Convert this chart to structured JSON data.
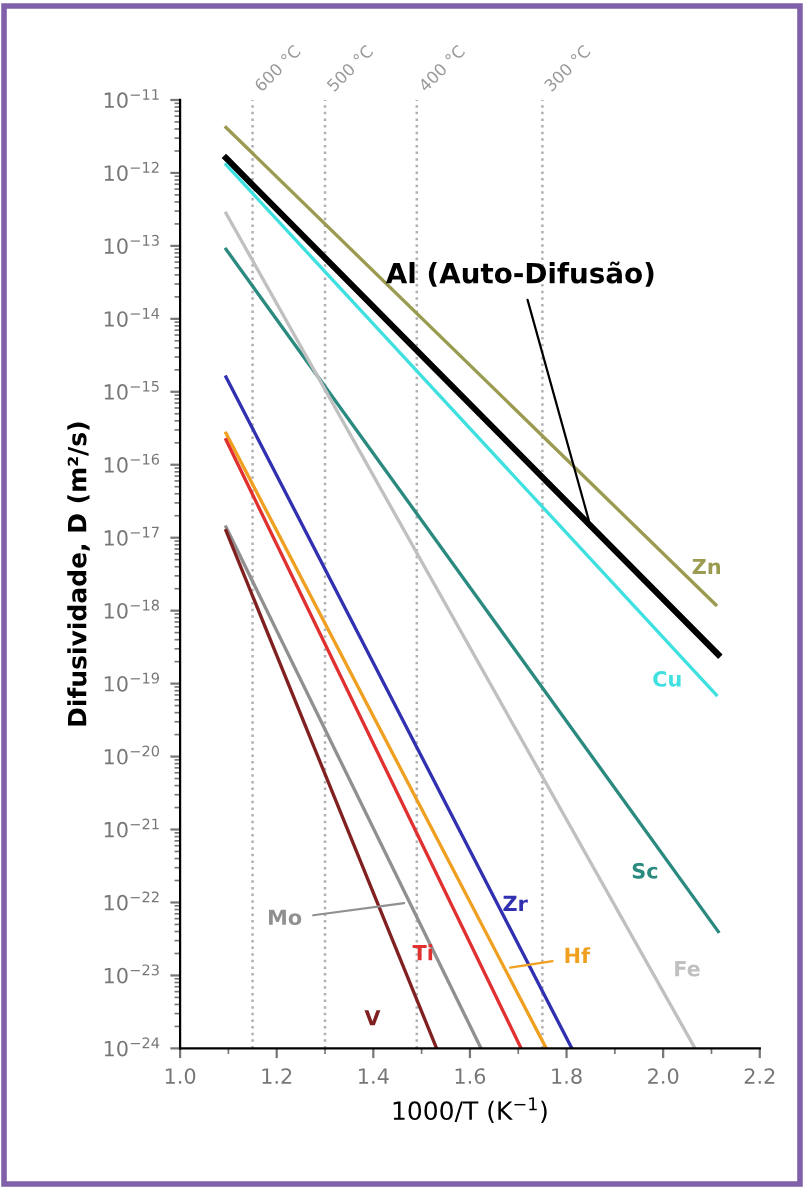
{
  "chart_data": {
    "type": "line",
    "xlabel": "1000/T (K$^{−1}$)",
    "ylabel": "Difusividade, D (m²/s)",
    "log": "y",
    "grid": false,
    "marker": "none",
    "line_style": "solid",
    "xlim": [
      1.0,
      2.2
    ],
    "xticks": [
      {
        "value": 1.0,
        "label": "1.0"
      },
      {
        "value": 1.2,
        "label": "1.2"
      },
      {
        "value": 1.4,
        "label": "1.4"
      },
      {
        "value": 1.6,
        "label": "1.6"
      },
      {
        "value": 1.8,
        "label": "1.8"
      },
      {
        "value": 2.0,
        "label": "2.0"
      },
      {
        "value": 2.2,
        "label": "2.2"
      }
    ],
    "ylim": [
      1e-24,
      1e-11
    ],
    "yticks": [
      {
        "value": 1e-11,
        "label": "10$^{−11}$"
      },
      {
        "value": 1e-12,
        "label": "10$^{−12}$"
      },
      {
        "value": 1e-13,
        "label": "10$^{−13}$"
      },
      {
        "value": 1e-14,
        "label": "10$^{−14}$"
      },
      {
        "value": 1e-15,
        "label": "10$^{−15}$"
      },
      {
        "value": 1e-16,
        "label": "10$^{−16}$"
      },
      {
        "value": 1e-17,
        "label": "10$^{−17}$"
      },
      {
        "value": 1e-18,
        "label": "10$^{−18}$"
      },
      {
        "value": 1e-19,
        "label": "10$^{−19}$"
      },
      {
        "value": 1e-20,
        "label": "10$^{−20}$"
      },
      {
        "value": 1e-21,
        "label": "10$^{−21}$"
      },
      {
        "value": 1e-22,
        "label": "10$^{−22}$"
      },
      {
        "value": 1e-23,
        "label": "10$^{−23}$"
      },
      {
        "value": 1e-24,
        "label": "10$^{−24}$"
      }
    ],
    "series": [
      {
        "name": "Zn",
        "color": "#9a9a50",
        "x": [
          1.095,
          2.109
        ],
        "values": [
          4.2e-12,
          1.2e-18
        ]
      },
      {
        "name": "Al (Auto-Difusão)",
        "color": "#000000",
        "x": [
          1.095,
          2.114
        ],
        "values": [
          1.6e-12,
          2.5e-19
        ]
      },
      {
        "name": "Cu",
        "color": "#40e0e0",
        "x": [
          1.095,
          2.11
        ],
        "values": [
          1.3e-12,
          7e-20
        ]
      },
      {
        "name": "Sc",
        "color": "#2a8a80",
        "x": [
          1.095,
          2.114
        ],
        "values": [
          9e-14,
          4e-23
        ]
      },
      {
        "name": "Fe",
        "color": "#c0c0c0",
        "x": [
          1.095,
          2.066
        ],
        "values": [
          2.8e-13,
          1e-24
        ]
      },
      {
        "name": "Zr",
        "color": "#3030b0",
        "x": [
          1.095,
          1.811
        ],
        "values": [
          1.6e-15,
          1e-24
        ]
      },
      {
        "name": "Hf",
        "color": "#f0a020",
        "x": [
          1.095,
          1.758
        ],
        "values": [
          2.7e-16,
          1e-24
        ]
      },
      {
        "name": "Ti",
        "color": "#e03030",
        "x": [
          1.095,
          1.706
        ],
        "values": [
          2.2e-16,
          1e-24
        ]
      },
      {
        "name": "Mo",
        "color": "#909090",
        "x": [
          1.095,
          1.623
        ],
        "values": [
          1.4e-17,
          1e-24
        ]
      },
      {
        "name": "V",
        "color": "#802020",
        "x": [
          1.095,
          1.531
        ],
        "values": [
          1.25e-17,
          1e-24
        ]
      }
    ],
    "ref_lines": [
      {
        "axis": "x",
        "value": 1.15,
        "label": "600 °C",
        "color": "#b0b0b0",
        "line_style": "dotted"
      },
      {
        "axis": "x",
        "value": 1.3,
        "label": "500 °C",
        "color": "#b0b0b0",
        "line_style": "dotted"
      },
      {
        "axis": "x",
        "value": 1.49,
        "label": "400 °C",
        "color": "#b0b0b0",
        "line_style": "dotted"
      },
      {
        "axis": "x",
        "value": 1.75,
        "label": "300 °C",
        "color": "#b0b0b0",
        "line_style": "dotted"
      }
    ]
  }
}
